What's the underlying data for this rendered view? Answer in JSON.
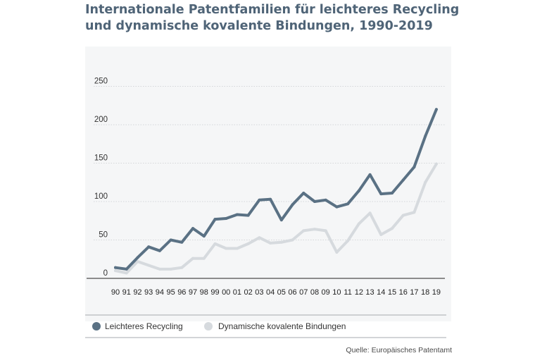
{
  "chart_data": {
    "type": "line",
    "title_lines": [
      "Internationale Patentfamilien für leichteres Recycling",
      "und dynamische kovalente Bindungen, 1990-2019"
    ],
    "categories": [
      "90",
      "91",
      "92",
      "93",
      "94",
      "95",
      "96",
      "97",
      "98",
      "99",
      "00",
      "01",
      "02",
      "03",
      "04",
      "05",
      "06",
      "07",
      "08",
      "09",
      "10",
      "11",
      "12",
      "13",
      "14",
      "15",
      "16",
      "17",
      "18",
      "19"
    ],
    "series": [
      {
        "name": "Leichteres Recycling",
        "color": "#5a7184",
        "values": [
          14,
          12,
          27,
          41,
          36,
          50,
          47,
          65,
          55,
          77,
          78,
          83,
          82,
          102,
          103,
          76,
          96,
          111,
          100,
          102,
          93,
          97,
          114,
          135,
          110,
          111,
          128,
          145,
          185,
          220
        ]
      },
      {
        "name": "Dynamische kovalente Bindungen",
        "color": "#d6dade",
        "values": [
          10,
          7,
          22,
          17,
          12,
          12,
          14,
          26,
          26,
          45,
          39,
          39,
          45,
          53,
          46,
          47,
          50,
          62,
          64,
          62,
          34,
          49,
          71,
          85,
          57,
          65,
          82,
          86,
          125,
          149
        ]
      }
    ],
    "yticks": [
      0,
      50,
      100,
      150,
      200,
      250
    ],
    "ylim": [
      0,
      300
    ],
    "grid": true,
    "legend_position": "bottom",
    "source": "Quelle: Europäisches Patentamt"
  }
}
